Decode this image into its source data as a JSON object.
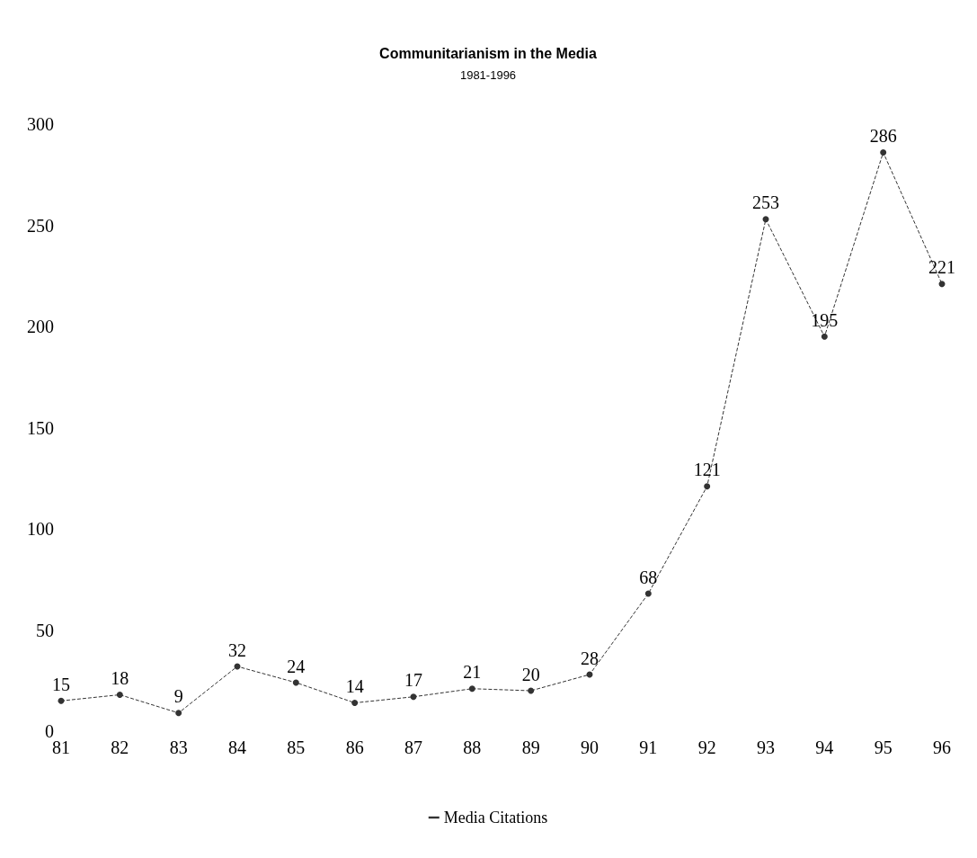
{
  "chart_data": {
    "type": "line",
    "title": "Communitarianism in the Media",
    "subtitle": "1981-1996",
    "categories": [
      "81",
      "82",
      "83",
      "84",
      "85",
      "86",
      "87",
      "88",
      "89",
      "90",
      "91",
      "92",
      "93",
      "94",
      "95",
      "96"
    ],
    "series": [
      {
        "name": "Media Citations",
        "color": "#333333",
        "values": [
          15,
          18,
          9,
          32,
          24,
          14,
          17,
          21,
          20,
          28,
          68,
          121,
          253,
          195,
          286,
          221
        ]
      }
    ],
    "ylim": [
      0,
      300
    ],
    "yticks": [
      0,
      50,
      100,
      150,
      200,
      250,
      300
    ],
    "data_labels": true,
    "legend": "bottom",
    "marker": "circle",
    "line_style": "dashed",
    "grid": false
  }
}
